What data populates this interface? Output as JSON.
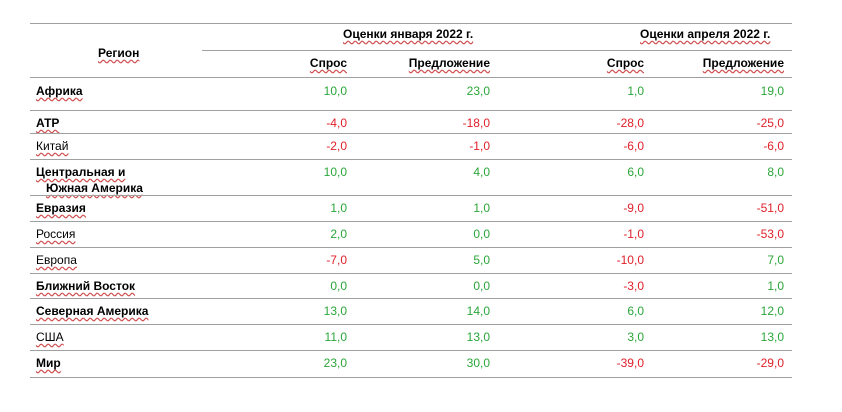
{
  "header": {
    "region": "Регион",
    "jan_group": "Оценки января 2022 г.",
    "apr_group": "Оценки апреля 2022 г.",
    "demand": "Спрос",
    "supply": "Предложение"
  },
  "rows": [
    {
      "name": "Африка",
      "bold": true,
      "values": [
        "10,0",
        "23,0",
        "1,0",
        "19,0"
      ]
    },
    {
      "name": "АТР",
      "bold": true,
      "values": [
        "-4,0",
        "-18,0",
        "-28,0",
        "-25,0"
      ]
    },
    {
      "name": "Китай",
      "bold": false,
      "values": [
        "-2,0",
        "-1,0",
        "-6,0",
        "-6,0"
      ]
    },
    {
      "name": "Центральная и",
      "name2": "Южная Америка",
      "bold": true,
      "values": [
        "10,0",
        "4,0",
        "6,0",
        "8,0"
      ]
    },
    {
      "name": "Евразия",
      "bold": true,
      "values": [
        "1,0",
        "1,0",
        "-9,0",
        "-51,0"
      ]
    },
    {
      "name": "Россия",
      "bold": false,
      "values": [
        "2,0",
        "0,0",
        "-1,0",
        "-53,0"
      ]
    },
    {
      "name": "Европа",
      "bold": false,
      "values": [
        "-7,0",
        "5,0",
        "-10,0",
        "7,0"
      ]
    },
    {
      "name": "Ближний Восток",
      "bold": true,
      "values": [
        "0,0",
        "0,0",
        "-3,0",
        "1,0"
      ]
    },
    {
      "name": "Северная Америка",
      "bold": true,
      "values": [
        "13,0",
        "14,0",
        "6,0",
        "12,0"
      ]
    },
    {
      "name": "США",
      "bold": false,
      "values": [
        "11,0",
        "13,0",
        "3,0",
        "13,0"
      ]
    },
    {
      "name": "Мир",
      "bold": true,
      "values": [
        "23,0",
        "30,0",
        "-39,0",
        "-29,0"
      ]
    }
  ],
  "colors": {
    "positive": "#2aa63a",
    "negative": "#e0202a",
    "rule": "#a0a0a0"
  }
}
